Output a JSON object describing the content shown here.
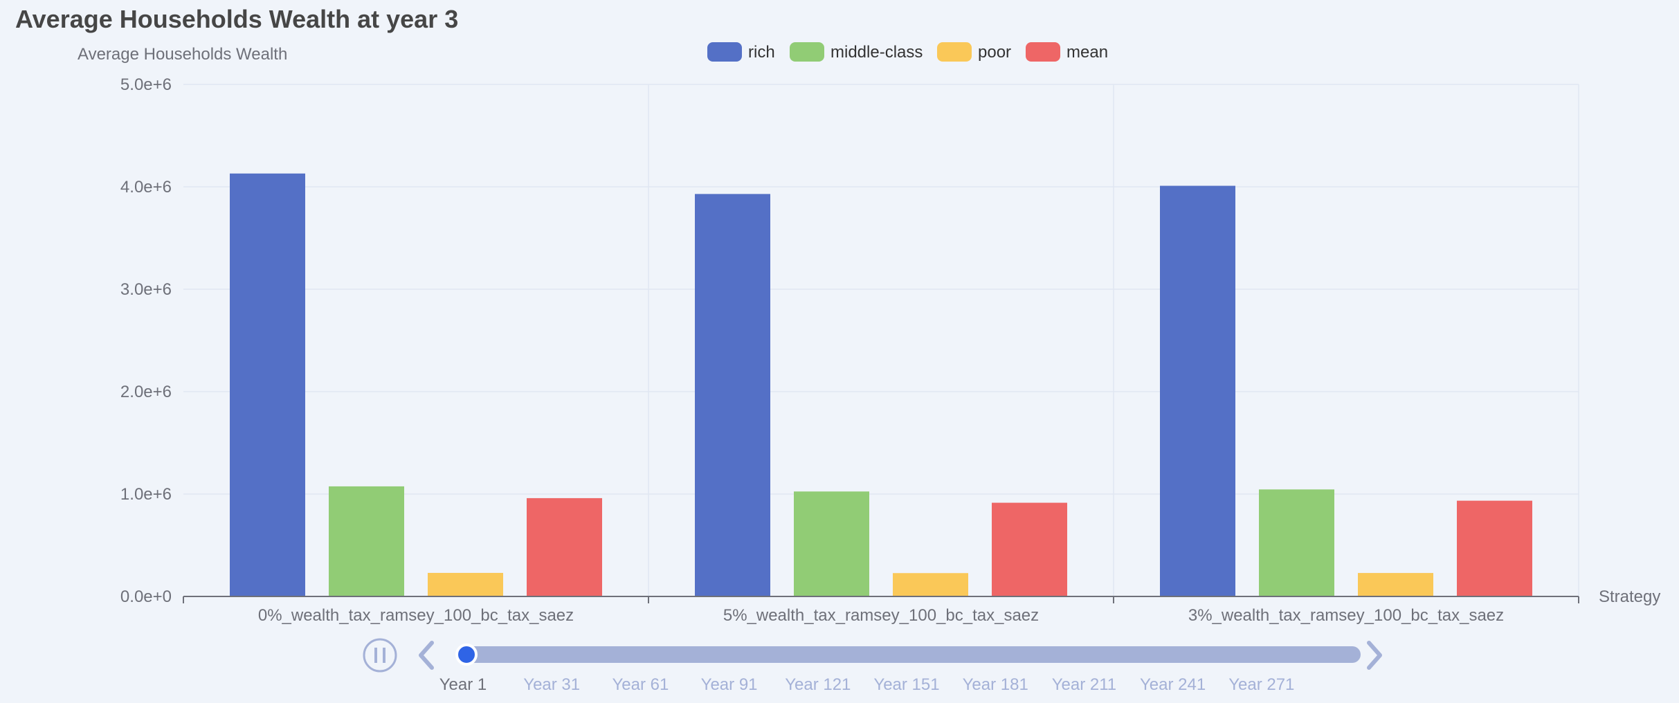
{
  "chart_data": {
    "type": "bar",
    "title": "Average Households Wealth at year 3",
    "ylabel": "Average Households Wealth",
    "xlabel": "Strategy",
    "ylim": [
      0,
      5000000
    ],
    "y_ticks": [
      0,
      1000000,
      2000000,
      3000000,
      4000000,
      5000000
    ],
    "y_tick_labels": [
      "0.0e+0",
      "1.0e+6",
      "2.0e+6",
      "3.0e+6",
      "4.0e+6",
      "5.0e+6"
    ],
    "categories": [
      "0%_wealth_tax_ramsey_100_bc_tax_saez",
      "5%_wealth_tax_ramsey_100_bc_tax_saez",
      "3%_wealth_tax_ramsey_100_bc_tax_saez"
    ],
    "series": [
      {
        "name": "rich",
        "color": "#5470c6",
        "values": [
          4130000,
          3930000,
          4010000
        ]
      },
      {
        "name": "middle-class",
        "color": "#91cc75",
        "values": [
          1075000,
          1025000,
          1045000
        ]
      },
      {
        "name": "poor",
        "color": "#fac858",
        "values": [
          230000,
          228000,
          229000
        ]
      },
      {
        "name": "mean",
        "color": "#ee6666",
        "values": [
          960000,
          915000,
          935000
        ]
      }
    ],
    "legend_position": "top-center",
    "grid": true
  },
  "timeline": {
    "labels": [
      "Year 1",
      "Year 31",
      "Year 61",
      "Year 91",
      "Year 121",
      "Year 151",
      "Year 181",
      "Year 211",
      "Year 241",
      "Year 271"
    ],
    "current_index": 0,
    "playing": true,
    "play_icon": "pause-icon",
    "prev_icon": "chevron-left-icon",
    "next_icon": "chevron-right-icon",
    "accent_color": "#2f64e6",
    "track_color": "#a4b1d7"
  }
}
